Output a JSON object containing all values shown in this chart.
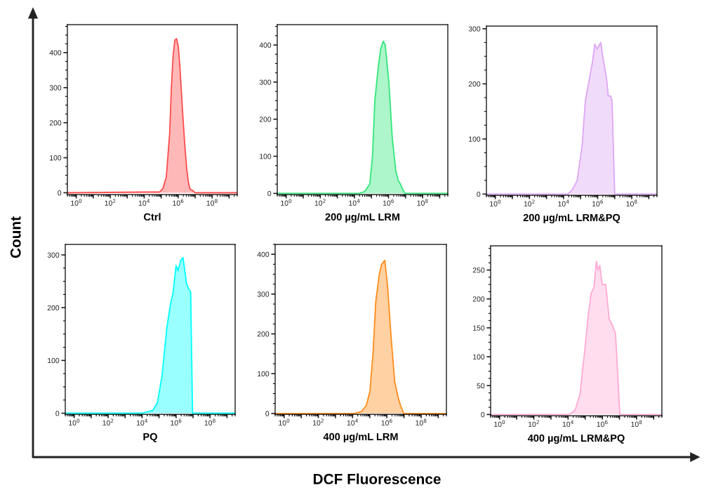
{
  "chart_data": [
    {
      "type": "area",
      "xlabel": "Ctrl",
      "log": "x",
      "xlim": [
        0.3,
        3000000000
      ],
      "ylim": [
        -5,
        480
      ],
      "yticks": [
        0,
        100,
        200,
        300,
        400
      ],
      "xticks": [
        {
          "value": 1,
          "label": "10$^{0}$"
        },
        {
          "value": 10,
          "label": null
        },
        {
          "value": 100,
          "label": "10$^{2}$"
        },
        {
          "value": 1000,
          "label": null
        },
        {
          "value": 10000,
          "label": "10$^{4}$"
        },
        {
          "value": 100000,
          "label": null
        },
        {
          "value": 1000000,
          "label": "10$^{6}$"
        },
        {
          "value": 10000000,
          "label": null
        },
        {
          "value": 100000000,
          "label": "10$^{8}$"
        },
        {
          "value": 1000000000,
          "label": null
        }
      ],
      "annotations": [
        "Count",
        "DCF Fluorescence"
      ],
      "series": [
        {
          "color": "#ff4d4d",
          "x": [
            0.3,
            12600,
            79400,
            126000,
            200000,
            316000,
            398000,
            501000,
            631000,
            794000,
            1000000,
            1260000,
            1580000,
            2000000,
            2510000,
            3160000,
            3980000,
            5010000,
            6310000,
            10000000,
            3000000000
          ],
          "values": [
            0,
            2,
            2,
            12,
            45,
            170,
            300,
            390,
            435,
            440,
            420,
            360,
            280,
            200,
            130,
            70,
            30,
            10,
            8,
            0,
            0
          ]
        }
      ]
    },
    {
      "type": "area",
      "xlabel": "200 µg/mL LRM",
      "log": "x",
      "xlim": [
        0.3,
        3000000000
      ],
      "ylim": [
        -3,
        455
      ],
      "yticks": [
        0,
        100,
        200,
        300,
        400
      ],
      "xticks": [
        {
          "value": 1,
          "label": "10$^{0}$"
        },
        {
          "value": 10,
          "label": null
        },
        {
          "value": 100,
          "label": "10$^{2}$"
        },
        {
          "value": 1000,
          "label": null
        },
        {
          "value": 10000,
          "label": "10$^{4}$"
        },
        {
          "value": 100000,
          "label": null
        },
        {
          "value": 1000000,
          "label": "10$^{6}$"
        },
        {
          "value": 10000000,
          "label": null
        },
        {
          "value": 100000000,
          "label": "10$^{8}$"
        },
        {
          "value": 1000000000,
          "label": null
        }
      ],
      "series": [
        {
          "color": "#33e67a",
          "x": [
            0.3,
            20000,
            39800,
            79400,
            115000,
            158000,
            251000,
            347000,
            501000,
            646000,
            1050000,
            1660000,
            2690000,
            3720000,
            5010000,
            6920000,
            9550000,
            3000000000
          ],
          "values": [
            0,
            0,
            5,
            25,
            100,
            250,
            340,
            390,
            410,
            400,
            300,
            150,
            60,
            35,
            25,
            10,
            0,
            0
          ]
        }
      ]
    },
    {
      "type": "area",
      "xlabel": "200 µg/mL LRM&PQ",
      "log": "x",
      "xlim": [
        0.3,
        3000000000
      ],
      "ylim": [
        -2,
        305
      ],
      "yticks": [
        0,
        100,
        200,
        300
      ],
      "xticks": [
        {
          "value": 1,
          "label": "10$^{0}$"
        },
        {
          "value": 10,
          "label": null
        },
        {
          "value": 100,
          "label": "10$^{2}$"
        },
        {
          "value": 1000,
          "label": null
        },
        {
          "value": 10000,
          "label": "10$^{4}$"
        },
        {
          "value": 100000,
          "label": null
        },
        {
          "value": 1000000,
          "label": "10$^{6}$"
        },
        {
          "value": 10000000,
          "label": null
        },
        {
          "value": 100000000,
          "label": "10$^{8}$"
        },
        {
          "value": 1000000000,
          "label": null
        }
      ],
      "series": [
        {
          "color": "#dda6f5",
          "x": [
            0.3,
            17800,
            33100,
            63100,
            120000,
            191000,
            309000,
            501000,
            676000,
            933000,
            1510000,
            2090000,
            3310000,
            4170000,
            5750000,
            6920000,
            10000000,
            3000000000
          ],
          "values": [
            0,
            0,
            8,
            25,
            85,
            170,
            205,
            240,
            272,
            263,
            275,
            245,
            210,
            178,
            178,
            170,
            0,
            0
          ]
        }
      ]
    },
    {
      "type": "area",
      "xlabel": "PQ",
      "log": "x",
      "xlim": [
        0.3,
        3000000000
      ],
      "ylim": [
        -2,
        320
      ],
      "yticks": [
        0,
        100,
        200,
        300
      ],
      "xticks": [
        {
          "value": 1,
          "label": "10$^{0}$"
        },
        {
          "value": 10,
          "label": null
        },
        {
          "value": 100,
          "label": "10$^{2}$"
        },
        {
          "value": 1000,
          "label": null
        },
        {
          "value": 10000,
          "label": "10$^{4}$"
        },
        {
          "value": 100000,
          "label": null
        },
        {
          "value": 1000000,
          "label": "10$^{6}$"
        },
        {
          "value": 10000000,
          "label": null
        },
        {
          "value": 100000000,
          "label": "10$^{8}$"
        },
        {
          "value": 1000000000,
          "label": null
        }
      ],
      "series": [
        {
          "color": "#00ffff",
          "x": [
            0.3,
            10000,
            41700,
            79400,
            148000,
            282000,
            457000,
            676000,
            1000000,
            1290000,
            1910000,
            2570000,
            4170000,
            5750000,
            7240000,
            9330000,
            3000000000
          ],
          "values": [
            0,
            0,
            5,
            20,
            70,
            160,
            205,
            230,
            280,
            270,
            290,
            295,
            245,
            235,
            230,
            0,
            0
          ]
        }
      ]
    },
    {
      "type": "area",
      "xlabel": "400 µg/mL LRM",
      "log": "x",
      "xlim": [
        0.3,
        3000000000
      ],
      "ylim": [
        -2,
        425
      ],
      "yticks": [
        0,
        100,
        200,
        300,
        400
      ],
      "xticks": [
        {
          "value": 1,
          "label": "10$^{0}$"
        },
        {
          "value": 10,
          "label": null
        },
        {
          "value": 100,
          "label": "10$^{2}$"
        },
        {
          "value": 1000,
          "label": null
        },
        {
          "value": 10000,
          "label": "10$^{4}$"
        },
        {
          "value": 100000,
          "label": null
        },
        {
          "value": 1000000,
          "label": "10$^{6}$"
        },
        {
          "value": 10000000,
          "label": null
        },
        {
          "value": 100000000,
          "label": "10$^{8}$"
        },
        {
          "value": 1000000000,
          "label": null
        }
      ],
      "series": [
        {
          "color": "#ff8c1a",
          "x": [
            0.3,
            12900,
            33100,
            63100,
            102000,
            155000,
            224000,
            363000,
            501000,
            759000,
            1100000,
            1780000,
            2880000,
            4570000,
            6310000,
            9550000,
            3000000000
          ],
          "values": [
            0,
            0,
            5,
            20,
            55,
            150,
            280,
            350,
            375,
            385,
            320,
            190,
            80,
            40,
            20,
            0,
            0
          ]
        }
      ]
    },
    {
      "type": "area",
      "xlabel": "400 µg/mL LRM&PQ",
      "log": "x",
      "xlim": [
        0.3,
        3000000000
      ],
      "ylim": [
        -2,
        292
      ],
      "yticks": [
        0,
        50,
        100,
        150,
        200,
        250
      ],
      "xticks": [
        {
          "value": 1,
          "label": "10$^{0}$"
        },
        {
          "value": 10,
          "label": null
        },
        {
          "value": 100,
          "label": "10$^{2}$"
        },
        {
          "value": 1000,
          "label": null
        },
        {
          "value": 10000,
          "label": "10$^{4}$"
        },
        {
          "value": 100000,
          "label": null
        },
        {
          "value": 1000000,
          "label": "10$^{6}$"
        },
        {
          "value": 10000000,
          "label": null
        },
        {
          "value": 100000000,
          "label": "10$^{8}$"
        },
        {
          "value": 1000000000,
          "label": null
        }
      ],
      "series": [
        {
          "color": "#ffaad4",
          "x": [
            0.3,
            12000,
            26300,
            49000,
            93300,
            148000,
            224000,
            324000,
            447000,
            562000,
            708000,
            977000,
            1580000,
            2510000,
            3800000,
            5890000,
            7590000,
            10500000,
            3000000000
          ],
          "values": [
            0,
            0,
            8,
            35,
            110,
            170,
            210,
            220,
            265,
            250,
            258,
            225,
            225,
            165,
            155,
            140,
            80,
            0,
            0
          ]
        }
      ]
    }
  ]
}
